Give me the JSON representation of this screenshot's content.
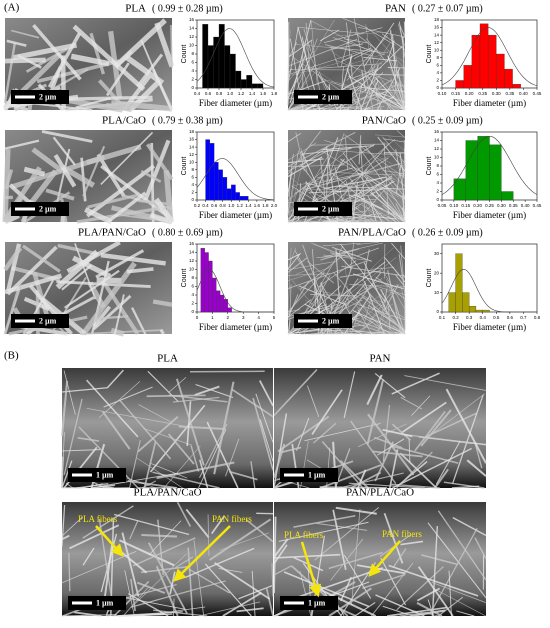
{
  "panel_a_label": "(A)",
  "chart_data": [
    {
      "type": "histogram",
      "title": "PLA",
      "subtitle": "( 0.99 ± 0.28 µm)",
      "xlabel": "Fiber diameter (µm)",
      "ylabel": "Count",
      "scale_bar": "2 µm",
      "color": "#000000",
      "bins": [
        0.5,
        0.6,
        0.7,
        0.8,
        0.9,
        1.0,
        1.1,
        1.2,
        1.3,
        1.4,
        1.5,
        1.6
      ],
      "counts": [
        15,
        10,
        12,
        15,
        10,
        8,
        4,
        2,
        3,
        1,
        1
      ],
      "xlim": [
        0.4,
        1.8
      ],
      "xticks": [
        0.4,
        0.6,
        0.8,
        {
          "value": 1,
          "label": "1.0"
        },
        1.2,
        1.4,
        1.6,
        1.8
      ],
      "ylim": [
        0,
        16
      ],
      "yticks": [
        0,
        2,
        4,
        6,
        8,
        10,
        12,
        14,
        16
      ],
      "fit": {
        "mean": 0.99,
        "sd": 0.28,
        "peak": 14
      }
    },
    {
      "type": "histogram",
      "title": "PAN",
      "subtitle": "( 0.27 ± 0.07 µm)",
      "xlabel": "Fiber diameter (µm)",
      "ylabel": "Count",
      "scale_bar": "2 µm",
      "color": "#ff0000",
      "bins": [
        0.15,
        0.18,
        0.21,
        0.24,
        0.27,
        0.3,
        0.33,
        0.36,
        0.39
      ],
      "counts": [
        2,
        6,
        14,
        17,
        14,
        9,
        5,
        1
      ],
      "xlim": [
        0.1,
        0.45
      ],
      "xticks": [
        {
          "value": 0.1,
          "label": "0.10"
        },
        0.15,
        {
          "value": 0.2,
          "label": "0.20"
        },
        0.25,
        {
          "value": 0.3,
          "label": "0.30"
        },
        0.35,
        {
          "value": 0.4,
          "label": "0.40"
        },
        0.45
      ],
      "ylim": [
        0,
        18
      ],
      "yticks": [
        0,
        2,
        4,
        6,
        8,
        10,
        12,
        14,
        16,
        18
      ],
      "fit": {
        "mean": 0.27,
        "sd": 0.07,
        "peak": 16
      }
    },
    {
      "type": "histogram",
      "title": "PLA/CaO",
      "subtitle": "( 0.79 ± 0.38 µm)",
      "xlabel": "Fiber diameter (µm)",
      "ylabel": "Count",
      "scale_bar": "2 µm",
      "color": "#0000ff",
      "bins": [
        0.4,
        0.5,
        0.6,
        0.7,
        0.8,
        0.9,
        1.0,
        1.1,
        1.2,
        1.3,
        1.4
      ],
      "counts": [
        16,
        15,
        10,
        8,
        6,
        3,
        4,
        2,
        1,
        1
      ],
      "xlim": [
        0.2,
        2
      ],
      "xticks": [
        0.2,
        0.4,
        0.6,
        0.8,
        {
          "value": 1,
          "label": "1.0"
        },
        1.2,
        1.4,
        1.6,
        1.8,
        {
          "value": 2,
          "label": "2.0"
        }
      ],
      "ylim": [
        0,
        18
      ],
      "yticks": [
        0,
        2,
        4,
        6,
        8,
        10,
        12,
        14,
        16,
        18
      ],
      "fit": {
        "mean": 0.79,
        "sd": 0.38,
        "peak": 11
      }
    },
    {
      "type": "histogram",
      "title": "PAN/CaO",
      "subtitle": "( 0.25 ± 0.09 µm)",
      "xlabel": "Fiber diameter (µm)",
      "ylabel": "Count",
      "scale_bar": "2 µm",
      "color": "#009900",
      "bins": [
        0.1,
        0.15,
        0.2,
        0.25,
        0.3,
        0.35
      ],
      "counts": [
        5,
        14,
        15,
        13,
        2
      ],
      "xlim": [
        0.05,
        0.45
      ],
      "xticks": [
        0.05,
        {
          "value": 0.1,
          "label": "0.10"
        },
        0.15,
        {
          "value": 0.2,
          "label": "0.20"
        },
        0.25,
        {
          "value": 0.3,
          "label": "0.30"
        },
        0.35,
        {
          "value": 0.4,
          "label": "0.40"
        },
        0.45
      ],
      "ylim": [
        0,
        16
      ],
      "yticks": [
        0,
        2,
        4,
        6,
        8,
        10,
        12,
        14,
        16
      ],
      "fit": {
        "mean": 0.25,
        "sd": 0.09,
        "peak": 15
      }
    },
    {
      "type": "histogram",
      "title": "PLA/PAN/CaO",
      "subtitle": "( 0.80 ± 0.69 µm)",
      "xlabel": "Fiber diameter (µm)",
      "ylabel": "Count",
      "scale_bar": "2 µm",
      "color": "#9900cc",
      "bins": [
        0.25,
        0.5,
        0.75,
        1,
        1.25,
        1.5,
        1.75,
        2,
        2.25
      ],
      "counts": [
        15,
        14,
        12,
        8,
        5,
        4,
        3,
        1
      ],
      "xlim": [
        0,
        5
      ],
      "xticks": [
        0,
        1,
        2,
        3,
        4,
        5
      ],
      "ylim": [
        0,
        16
      ],
      "yticks": [
        0,
        2,
        4,
        6,
        8,
        10,
        12,
        14,
        16
      ],
      "fit": {
        "mean": 0.8,
        "sd": 0.69,
        "peak": 10
      }
    },
    {
      "type": "histogram",
      "title": "PAN/PLA/CaO",
      "subtitle": "( 0.26 ± 0.09 µm)",
      "xlabel": "Fiber diameter (µm)",
      "ylabel": "Count",
      "scale_bar": "2 µm",
      "color": "#a8a000",
      "bins": [
        0.15,
        0.2,
        0.25,
        0.3,
        0.35,
        0.4,
        0.45,
        0.5
      ],
      "counts": [
        10,
        30,
        10,
        3,
        1,
        1,
        0
      ],
      "xlim": [
        0.1,
        0.8
      ],
      "xticks": [
        0.1,
        0.2,
        0.3,
        0.4,
        0.5,
        0.6,
        0.7,
        0.8
      ],
      "ylim": [
        0,
        35
      ],
      "yticks": [
        0,
        10,
        20,
        30
      ],
      "fit": {
        "mean": 0.26,
        "sd": 0.09,
        "peak": 22
      }
    }
  ],
  "panel_b": {
    "label": "(B)",
    "images": [
      {
        "title": "PLA",
        "scale_bar": "1 µm",
        "annotations": []
      },
      {
        "title": "PAN",
        "scale_bar": "1 µm",
        "annotations": []
      },
      {
        "title": "PLA/PAN/CaO",
        "scale_bar": "1 µm",
        "annotations": [
          "PLA fibers",
          "PAN fibers"
        ]
      },
      {
        "title": "PAN/PLA/CaO",
        "scale_bar": "1 µm",
        "annotations": [
          "PLA fibers",
          "PAN fibers"
        ]
      }
    ]
  }
}
